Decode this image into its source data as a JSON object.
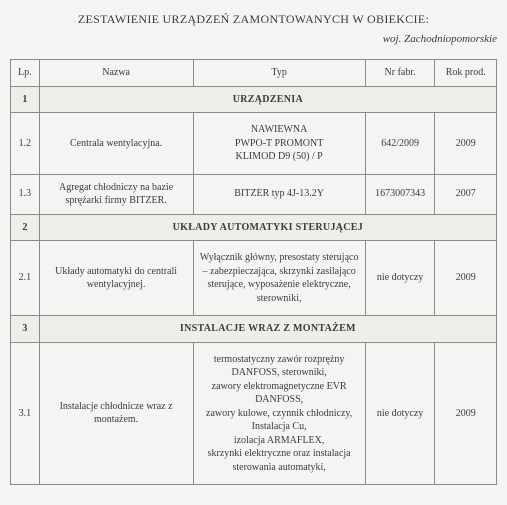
{
  "header": {
    "title": "ZESTAWIENIE URZĄDZEŃ ZAMONTOWANYCH W OBIEKCIE:",
    "region": "woj. Zachodniopomorskie"
  },
  "columns": {
    "lp": "Lp.",
    "name": "Nazwa",
    "type": "Typ",
    "fab": "Nr fabr.",
    "year": "Rok prod."
  },
  "sections": {
    "s1": {
      "num": "1",
      "title": "URZĄDZENIA"
    },
    "s2": {
      "num": "2",
      "title": "UKŁADY AUTOMATYKI STERUJĄCEJ"
    },
    "s3": {
      "num": "3",
      "title": "INSTALACJE  WRAZ Z MONTAŻEM"
    }
  },
  "rows": {
    "r12": {
      "lp": "1.2",
      "name": "Centrala wentylacyjna.",
      "type": "NAWIEWNA\nPWPO-T PROMONT\nKLIMOD D9 (50) / P",
      "fab": "642/2009",
      "year": "2009"
    },
    "r13": {
      "lp": "1.3",
      "name": "Agregat chłodniczy na bazie sprężarki firmy BITZER.",
      "type": "BITZER typ 4J-13.2Y",
      "fab": "1673007343",
      "year": "2007"
    },
    "r21": {
      "lp": "2.1",
      "name": "Układy automatyki do centrali wentylacyjnej.",
      "type": "Wyłącznik główny, presostaty sterująco – zabezpieczająca, skrzynki zasilająco sterujące, wyposażenie elektryczne, sterowniki,",
      "fab": "nie dotyczy",
      "year": "2009"
    },
    "r31": {
      "lp": "3.1",
      "name": "Instalacje chłodnicze wraz z montażem.",
      "type": "termostatyczny zawór rozprężny DANFOSS, sterowniki,\nzawory elektromagnetyczne EVR DANFOSS,\nzawory kulowe, czynnik chłodniczy, Instalacja Cu,\nizolacja  ARMAFLEX,\nskrzynki elektryczne oraz instalacja sterowania automatyki,",
      "fab": "nie dotyczy",
      "year": "2009"
    }
  }
}
